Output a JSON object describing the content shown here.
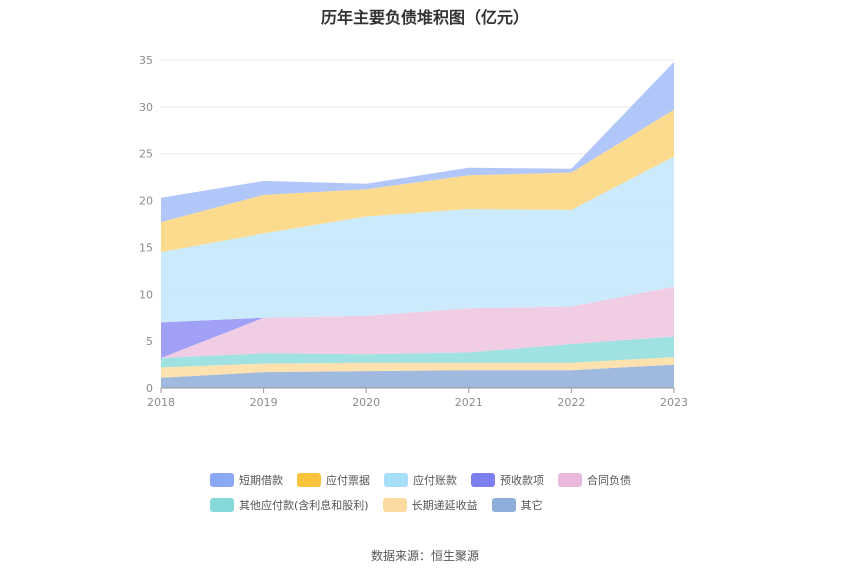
{
  "chart_data": {
    "type": "area",
    "title": "历年主要负债堆积图（亿元）",
    "stacked": true,
    "x": [
      "2018",
      "2019",
      "2020",
      "2021",
      "2022",
      "2023"
    ],
    "ylim": [
      0,
      35
    ],
    "yticks": [
      0,
      5,
      10,
      15,
      20,
      25,
      30,
      35
    ],
    "grid": true,
    "legend_position": "bottom",
    "series": [
      {
        "name": "其它",
        "color": "#8fadd9",
        "values": [
          1.1,
          1.7,
          1.8,
          1.9,
          1.9,
          2.5
        ]
      },
      {
        "name": "长期递延收益",
        "color": "#fddca0",
        "values": [
          1.1,
          0.9,
          0.9,
          0.8,
          0.8,
          0.8
        ]
      },
      {
        "name": "其他应付款(含利息和股利)",
        "color": "#8fdcdc",
        "values": [
          1.0,
          1.1,
          0.9,
          1.1,
          2.0,
          2.2
        ]
      },
      {
        "name": "合同负债",
        "color": "#efc4e1",
        "values": [
          0.0,
          3.8,
          4.1,
          4.7,
          4.0,
          5.3
        ]
      },
      {
        "name": "预收款项",
        "color": "#8f8ff5",
        "values": [
          3.8,
          0.0,
          0.0,
          0.0,
          0.0,
          0.0
        ]
      },
      {
        "name": "应付账款",
        "color": "#c2e6fa",
        "values": [
          7.5,
          9.0,
          10.6,
          10.6,
          10.3,
          13.9
        ]
      },
      {
        "name": "应付票据",
        "color": "#fdd57a",
        "values": [
          3.2,
          4.1,
          2.9,
          3.6,
          4.0,
          5.0
        ]
      },
      {
        "name": "短期借款",
        "color": "#a5bdf8",
        "values": [
          2.6,
          1.5,
          0.6,
          0.8,
          0.4,
          5.1
        ]
      }
    ]
  },
  "legend": {
    "row1": [
      {
        "label": "短期借款",
        "color": "#8aa8f5"
      },
      {
        "label": "应付票据",
        "color": "#fcc43c"
      },
      {
        "label": "应付账款",
        "color": "#a8def9"
      },
      {
        "label": "预收款项",
        "color": "#7d7ff0"
      },
      {
        "label": "合同负债",
        "color": "#eab8db"
      }
    ],
    "row2": [
      {
        "label": "其他应付款(含利息和股利)",
        "color": "#86d9d9"
      },
      {
        "label": "长期递延收益",
        "color": "#fddaa0"
      },
      {
        "label": "其它",
        "color": "#8fadd9"
      }
    ]
  },
  "source": "数据来源：恒生聚源"
}
